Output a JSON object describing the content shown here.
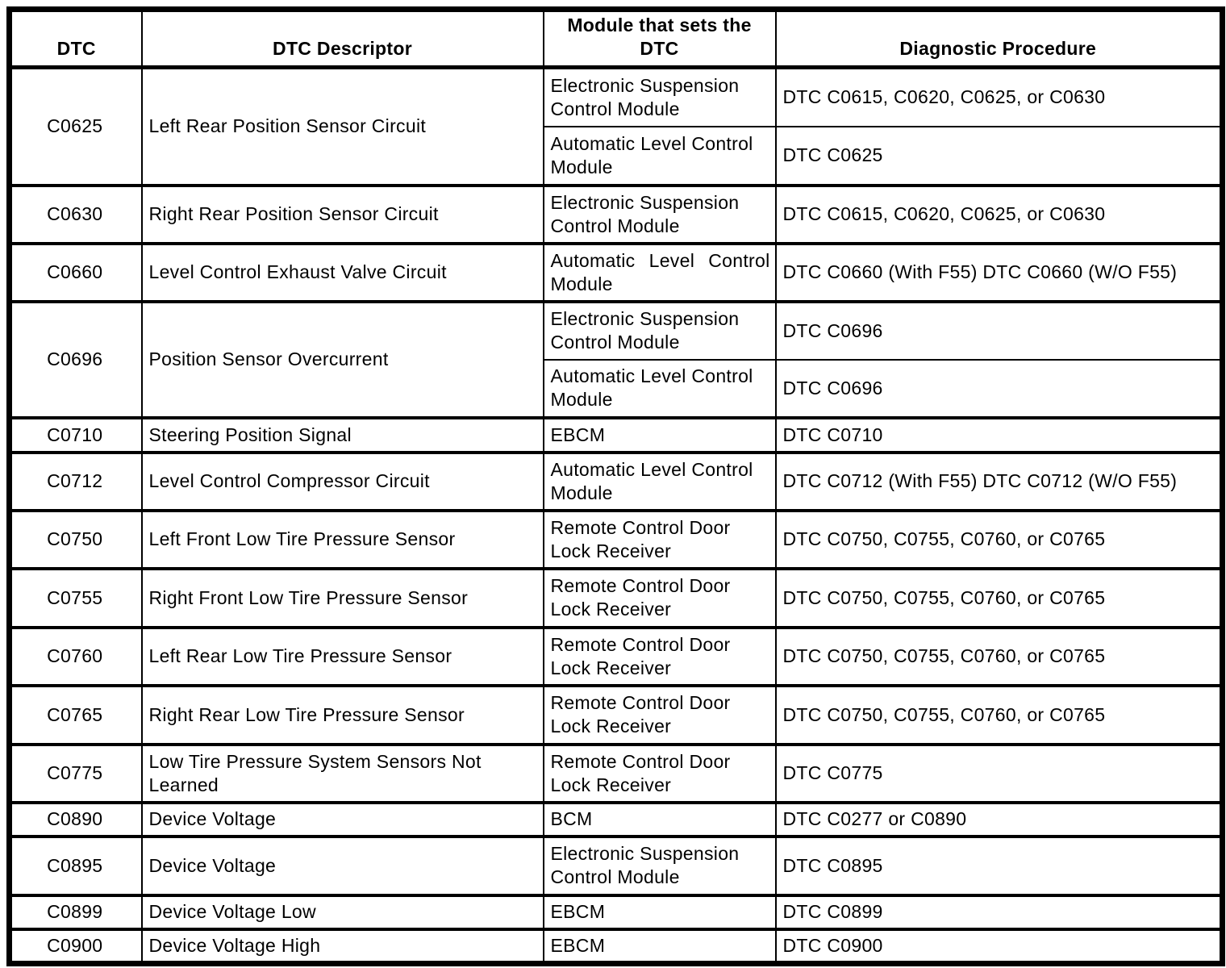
{
  "colors": {
    "border": "#000000",
    "text": "#000000",
    "background": "#ffffff"
  },
  "table": {
    "headers": {
      "dtc": "DTC",
      "descriptor": "DTC Descriptor",
      "module": "Module that sets the DTC",
      "procedure": "Diagnostic Procedure"
    },
    "rows": [
      {
        "dtc": "C0625",
        "descriptor": "Left Rear Position Sensor Circuit",
        "entries": [
          {
            "module": "Electronic Suspension Control Module",
            "procedure": "DTC C0615, C0620, C0625, or C0630"
          },
          {
            "module": "Automatic Level Control Module",
            "procedure": "DTC C0625"
          }
        ]
      },
      {
        "dtc": "C0630",
        "descriptor": "Right Rear Position Sensor Circuit",
        "entries": [
          {
            "module": "Electronic Suspension Control Module",
            "procedure": "DTC C0615, C0620, C0625, or C0630"
          }
        ]
      },
      {
        "dtc": "C0660",
        "descriptor": "Level Control Exhaust Valve Circuit",
        "entries": [
          {
            "module": "Automatic Level Control Module",
            "procedure": "DTC C0660 (With F55) DTC C0660 (W/O F55)"
          }
        ]
      },
      {
        "dtc": "C0696",
        "descriptor": "Position Sensor Overcurrent",
        "entries": [
          {
            "module": "Electronic Suspension Control Module",
            "procedure": "DTC C0696"
          },
          {
            "module": "Automatic Level Control Module",
            "procedure": "DTC C0696"
          }
        ]
      },
      {
        "dtc": "C0710",
        "descriptor": "Steering Position Signal",
        "entries": [
          {
            "module": "EBCM",
            "procedure": "DTC C0710"
          }
        ]
      },
      {
        "dtc": "C0712",
        "descriptor": "Level Control Compressor Circuit",
        "entries": [
          {
            "module": "Automatic Level Control Module",
            "procedure": "DTC C0712 (With F55) DTC C0712 (W/O F55)"
          }
        ]
      },
      {
        "dtc": "C0750",
        "descriptor": "Left Front Low Tire Pressure Sensor",
        "entries": [
          {
            "module": "Remote Control Door Lock Receiver",
            "procedure": "DTC C0750, C0755, C0760, or C0765"
          }
        ]
      },
      {
        "dtc": "C0755",
        "descriptor": "Right Front Low Tire Pressure Sensor",
        "entries": [
          {
            "module": "Remote Control Door Lock Receiver",
            "procedure": "DTC C0750, C0755, C0760, or C0765"
          }
        ]
      },
      {
        "dtc": "C0760",
        "descriptor": "Left Rear Low Tire Pressure Sensor",
        "entries": [
          {
            "module": "Remote Control Door Lock Receiver",
            "procedure": "DTC C0750, C0755, C0760, or C0765"
          }
        ]
      },
      {
        "dtc": "C0765",
        "descriptor": "Right Rear Low Tire Pressure Sensor",
        "entries": [
          {
            "module": "Remote Control Door Lock Receiver",
            "procedure": "DTC C0750, C0755, C0760, or C0765"
          }
        ]
      },
      {
        "dtc": "C0775",
        "descriptor": "Low Tire Pressure System Sensors Not Learned",
        "entries": [
          {
            "module": "Remote Control Door Lock Receiver",
            "procedure": "DTC C0775"
          }
        ]
      },
      {
        "dtc": "C0890",
        "descriptor": "Device Voltage",
        "entries": [
          {
            "module": "BCM",
            "procedure": "DTC C0277 or C0890"
          }
        ]
      },
      {
        "dtc": "C0895",
        "descriptor": "Device Voltage",
        "entries": [
          {
            "module": "Electronic Suspension Control Module",
            "procedure": "DTC C0895"
          }
        ]
      },
      {
        "dtc": "C0899",
        "descriptor": "Device Voltage Low",
        "entries": [
          {
            "module": "EBCM",
            "procedure": "DTC C0899"
          }
        ]
      },
      {
        "dtc": "C0900",
        "descriptor": "Device Voltage High",
        "entries": [
          {
            "module": "EBCM",
            "procedure": "DTC C0900"
          }
        ]
      }
    ]
  }
}
